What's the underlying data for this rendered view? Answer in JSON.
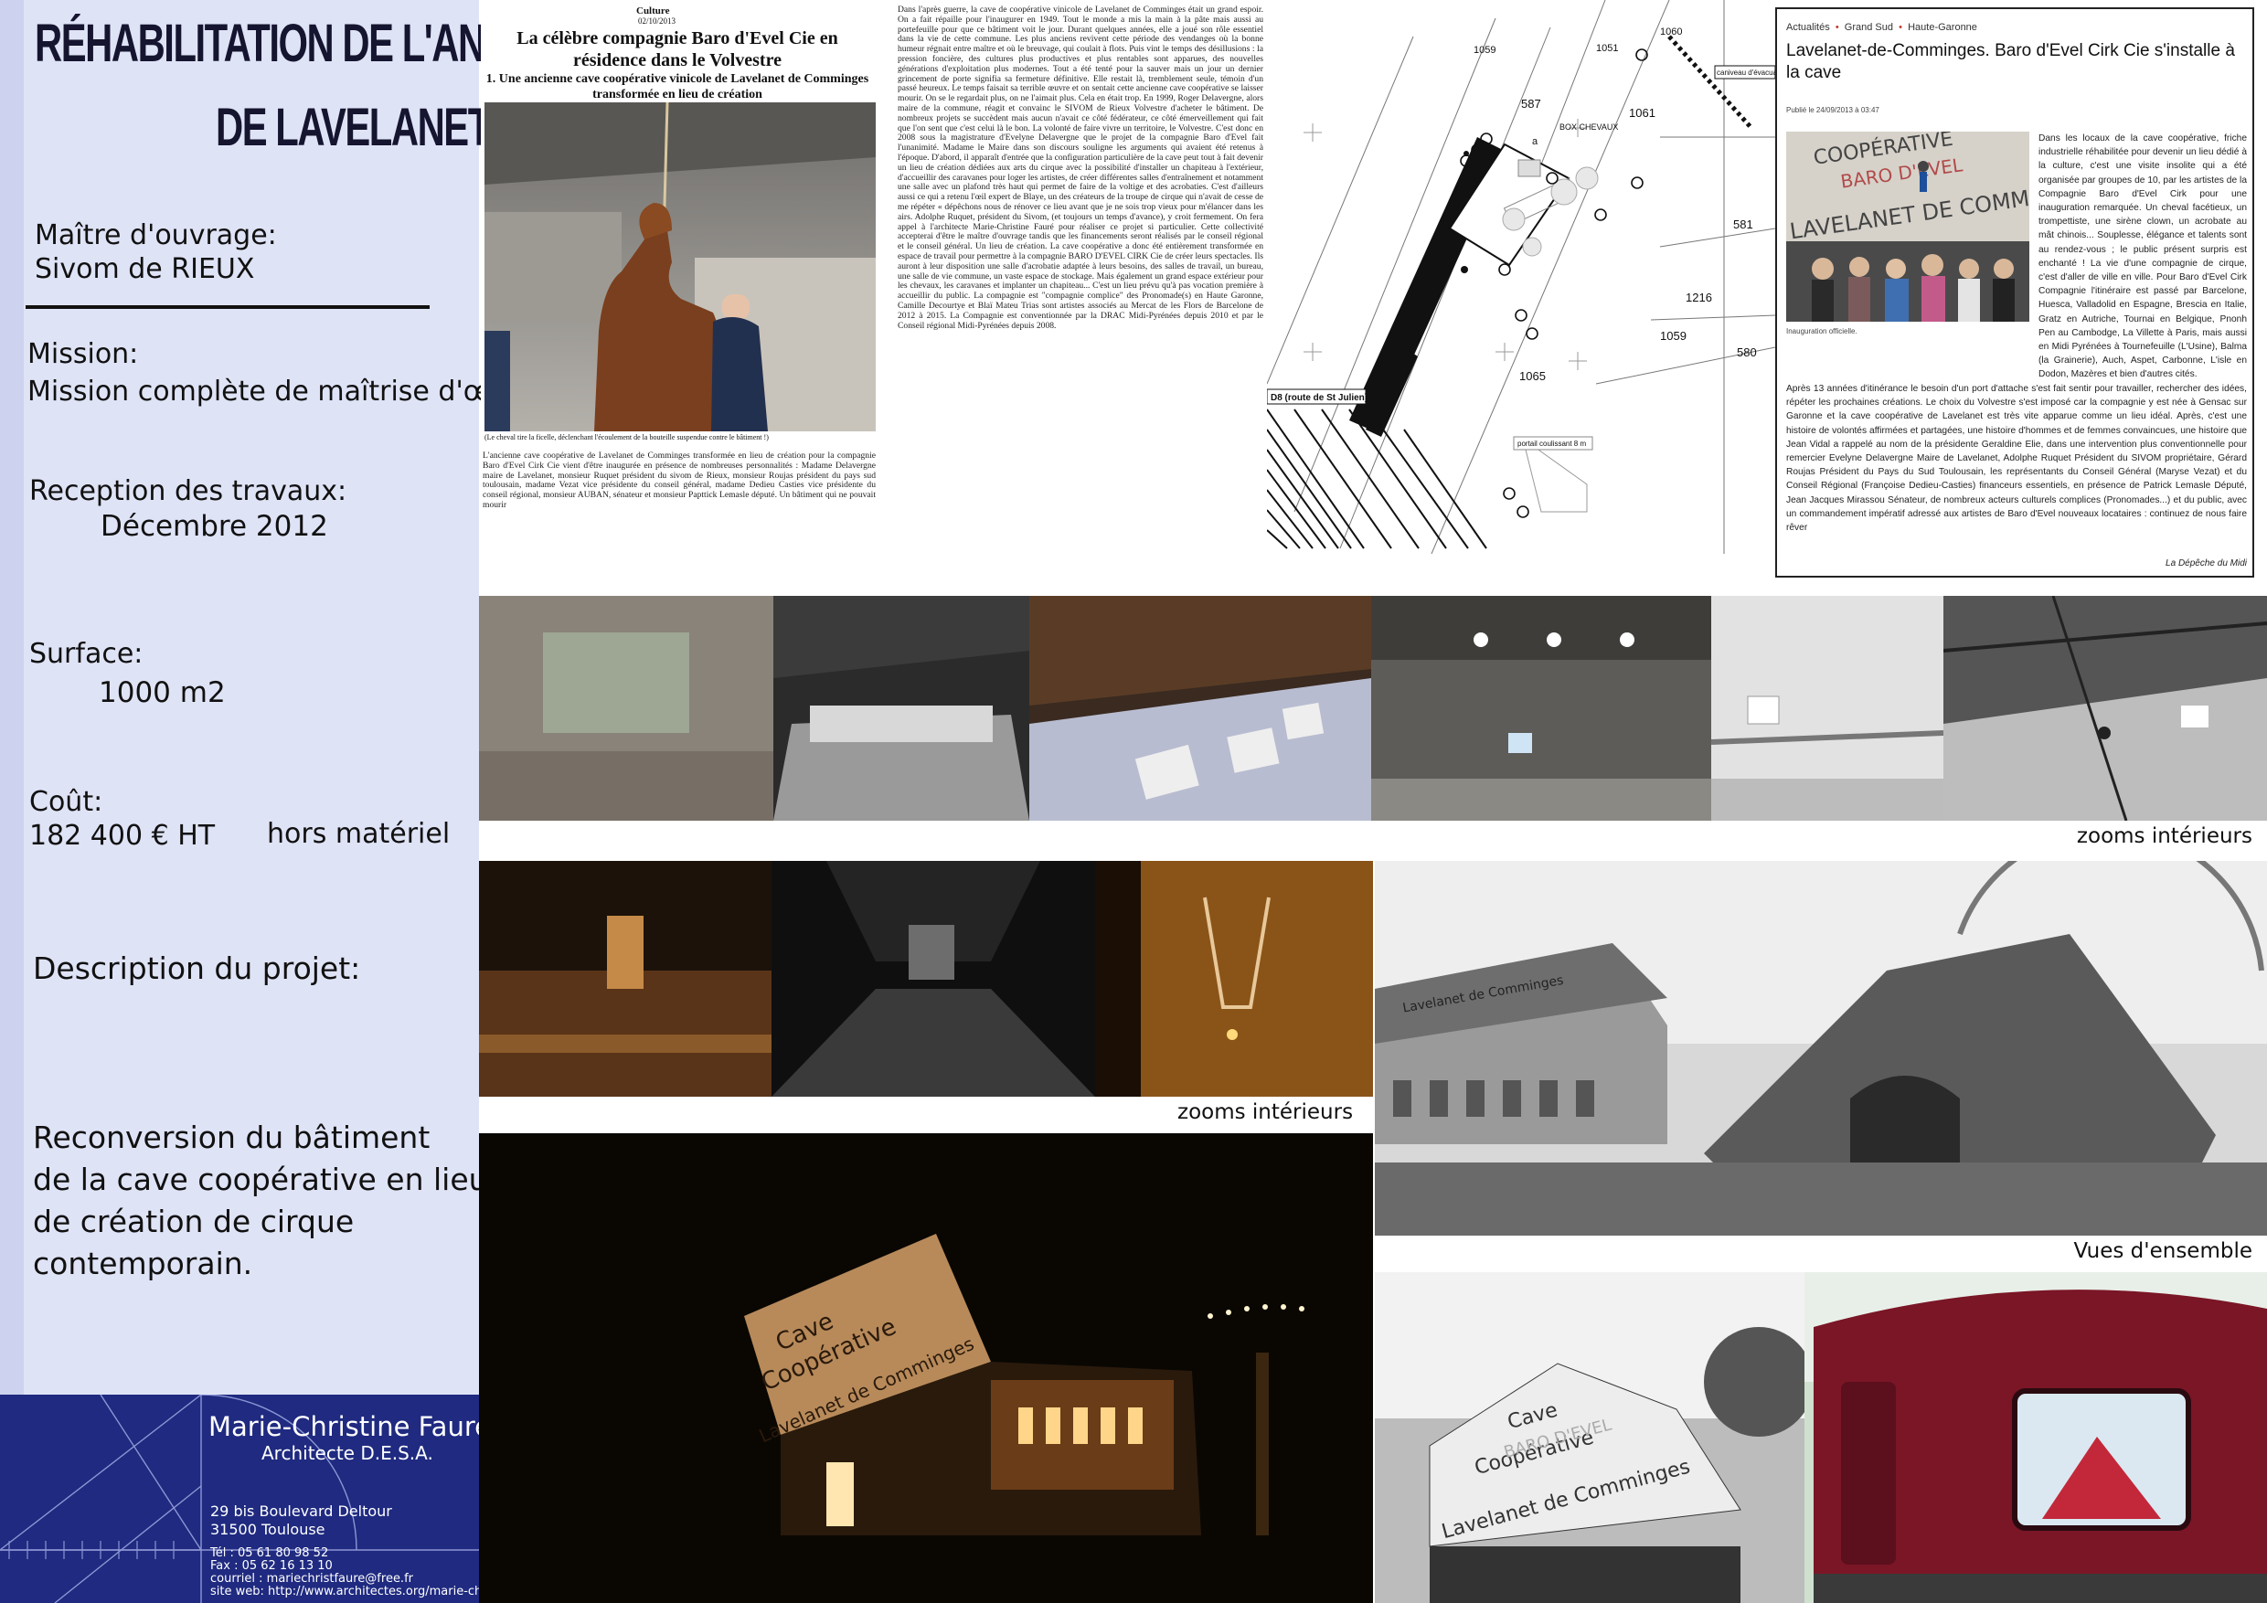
{
  "sidebar": {
    "title_line1": "Réhabilitation de l'ancienne cave coopérative",
    "title_line2": "de Lavelanet de Comminges",
    "owner_label": "Maître d'ouvrage:",
    "owner_value": "Sivom de RIEUX",
    "mission_label": "Mission:",
    "mission_value": "Mission complète de maîtrise d'œuvre",
    "reception_label": "Reception des travaux:",
    "reception_value": "Décembre 2012",
    "surface_label": "Surface:",
    "surface_value": "1000 m2",
    "cost_label": "Coût:",
    "cost_value": "182  400 € HT",
    "cost_note": "hors matériel",
    "description_label": "Description du projet:",
    "description_lines": [
      "Reconversion du bâtiment",
      "de la cave coopérative en lieu",
      "de création de cirque",
      "contemporain."
    ]
  },
  "architect": {
    "name": "Marie-Christine Fauré",
    "title": "Architecte D.E.S.A.",
    "address1": "29 bis Boulevard Deltour",
    "address2": "31500 Toulouse",
    "tel": "Tél :  05 61 80 98 52",
    "fax": "Fax : 05 62 16 13 10",
    "email": "courriel : mariechristfaure@free.fr",
    "web": "site web: http://www.architectes.org/marie-christine.faure"
  },
  "press1": {
    "kicker": "Culture",
    "date": "02/10/2013",
    "headline": "La célèbre compagnie Baro d'Evel Cie en résidence dans le Volvestre",
    "subhead": "1.   Une ancienne cave coopérative vinicole de Lavelanet de Comminges transformée en lieu de création",
    "caption": "(Le cheval tire la ficelle, déclenchant l'écoulement de la bouteille suspendue contre le bâtiment !)",
    "column_a": "L'ancienne cave coopérative de Lavelanet de Comminges transformée en lieu de création pour la compagnie Baro d'Evel Cirk Cie vient d'être inaugurée en présence de nombreuses personnalités : Madame Delavergne maire de Lavelanet, monsieur Ruquet président du sivom de Rieux, monsieur Roujas président du pays sud toulousain, madame Vezat vice présidente du conseil général, madame Dedieu Casties vice présidente du conseil régional, monsieur AUBAN, sénateur et monsieur Papttick Lemasle député. Un bâtiment qui ne pouvait mourir",
    "column_b": "Dans l'après guerre, la cave de coopérative vinicole de Lavelanet de Comminges était un grand espoir. On a fait répaille pour l'inaugurer en 1949. Tout le monde a mis la main à la pâte mais aussi au portefeuille pour que ce bâtiment voit le jour. Durant quelques années, elle a joué son rôle essentiel dans la vie de cette commune. Les plus anciens revivent cette période des vendanges où la bonne humeur régnait entre maître et où le breuvage, qui coulait à flots. Puis vint le temps des désillusions : la pression foncière, des cultures plus productives et plus rentables sont apparues, des nouvelles générations d'exploitation plus modernes. Tout a été tenté pour la sauver mais un jour un dernier grincement de porte signifia sa fermeture définitive. Elle restait là, tremblement seule, témoin d'un passé heureux. Le temps faisait sa terrible œuvre et on sentait cette ancienne cave coopérative se laisser mourir. On se le regardait plus, on ne l'aimait plus. Cela en était trop. En 1999, Roger Delavergne, alors maire de la commune, réagit et convainc le SIVOM de Rieux Volvestre d'acheter le bâtiment. De nombreux projets se succèdent mais aucun n'avait ce côté fédérateur, ce côté émerveillement qui fait que l'on sent que c'est celui là le bon. La volonté de faire vivre un territoire, le Volvestre. C'est donc en 2008 sous la magistrature d'Evelyne Delavergne que le projet de la compagnie Baro d'Evel fait l'unanimité. Madame le Maire dans son discours souligne les arguments qui avaient été retenus à l'époque. D'abord, il apparaît d'entrée que la configuration particulière de la cave peut tout à fait devenir un lieu de création dédiées aux arts du cirque avec la possibilité d'installer un chapiteau à l'extérieur, d'accueillir des caravanes pour loger les artistes, de créer différentes salles d'entraînement et notamment une salle avec un plafond très haut qui permet de faire de la voltige et des acrobaties. C'est d'ailleurs aussi ce qui a retenu l'œil expert de Blaye, un des créateurs de la troupe de cirque qui n'avait de cesse de me répéter « dépêchons nous de rénover ce lieu avant que je ne sois trop vieux pour m'élancer dans les airs. Adolphe Ruquet, président du Sivom, (et toujours un temps d'avance), y croit fermement. On fera appel à l'architecte Marie-Christine Fauré pour réaliser ce projet si particulier. Cette collectivité accepterai d'être le maître d'ouvrage tandis que les financements seront réalisés par le conseil régional et le conseil général. Un lieu de création. La cave coopérative a donc été entièrement transformée en espace de travail pour permettre à la compagnie BARO D'EVEL CIRK Cie de créer leurs spectacles. Ils auront à leur disposition une salle d'acrobatie adaptée à leurs besoins, des salles de travail, un bureau, une salle de vie commune, un vaste espace de stockage. Mais également un grand espace extérieur pour les chevaux, les caravanes et implanter un chapiteau... C'est un lieu prévu qu'à pas vocation première à accueillir du public. La compagnie est \"compagnie complice\" des Pronomade(s) en Haute Garonne, Camille Decourtye et Blaï Mateu Trias sont artistes associés au Mercat de les Flors de Barcelone de 2012 à 2015. La Compagnie est conventionnée par la DRAC Midi-Pyrénées depuis 2010 et par le Conseil régional Midi-Pyrénées depuis 2008."
  },
  "plan": {
    "labels": [
      "1059",
      "587",
      "1061",
      "581",
      "1216",
      "1059",
      "1065",
      "580",
      "1051",
      "a",
      "BOX CHEVAUX",
      "D8 (route de St Julien)",
      "caniveau d'évacuation",
      "portail coulissant 8 m",
      "1060"
    ]
  },
  "press2": {
    "crumb1": "Actualités",
    "crumb2": "Grand Sud",
    "crumb3": "Haute-Garonne",
    "title": "Lavelanet-de-Comminges. Baro d'Evel Cirk Cie s'installe à la cave",
    "published": "Publié le 24/09/2013 à 03:47",
    "photo_caption": "Inauguration officielle.",
    "text_a": "Dans les locaux de la cave coopérative, friche industrielle réhabilitée pour devenir un lieu dédié à la culture, c'est une visite insolite qui a été organisée par groupes de 10, par les artistes de la Compagnie Baro d'Evel Cirk pour une inauguration remarquée. Un cheval facétieux, un trompettiste, une sirène clown, un acrobate au mât chinois... Souplesse, élégance et talents sont au rendez-vous ; le public présent surpris est enchanté ! La vie d'une compagnie de cirque, c'est d'aller de ville en ville. Pour Baro d'Evel Cirk Compagnie l'itinéraire est passé par Barcelone, Huesca, Valladolid en Espagne, Brescia en Italie, Gratz en Autriche, Tournai en Belgique, Pnonh Pen au Cambodge, La Villette à Paris, mais aussi en Midi Pyrénées à Tournefeuille (L'Usine), Balma (la Grainerie), Auch, Aspet, Carbonne, L'isle en Dodon, Mazères et bien d'autres cités.",
    "text_b": "Après 13 années d'itinérance le besoin d'un port d'attache s'est fait sentir pour travailler, rechercher des idées, répéter les prochaines créations. Le choix du Volvestre s'est imposé car la compagnie y est née à Gensac sur Garonne et la cave coopérative de Lavelanet est très vite apparue comme un lieu idéal. Après, c'est une histoire de volontés affirmées et partagées, une histoire d'hommes et de femmes convaincues, une histoire que Jean Vidal a rappelé au nom de la présidente Geraldine Elie, dans une intervention plus conventionnelle pour remercier Evelyne Delavergne Maire de Lavelanet, Adolphe Ruquet Président du SIVOM propriétaire, Gérard Roujas Président du Pays du Sud Toulousain, les représentants du Conseil Général (Maryse Vezat) et du Conseil Régional (Françoise Dedieu-Casties) financeurs essentiels, en présence de Patrick Lemasle Député, Jean Jacques Mirassou Sénateur, de nombreux acteurs culturels complices (Pronomades...) et du public, avec un commandement impératif adressé aux artistes de Baro d'Evel nouveaux locataires : continuez de nous faire rêver",
    "source": "La Dépêche du Midi"
  },
  "photos": {
    "interior_label_1": "zooms intérieurs",
    "interior_label_2": "zooms intérieurs",
    "overview_label": "Vues d'ensemble",
    "facade_sign_line1": "Cave",
    "facade_sign_line2": "Coopérative",
    "facade_sign_line3": "Lavelanet de Comminges",
    "banner_text": "BARO D'EVEL"
  },
  "colors": {
    "sidebar_bg": "#dfe3f6",
    "sidebar_edge": "#cdd3ee",
    "footer_bg": "#1f2a80",
    "caravan_red": "#7a1626"
  }
}
